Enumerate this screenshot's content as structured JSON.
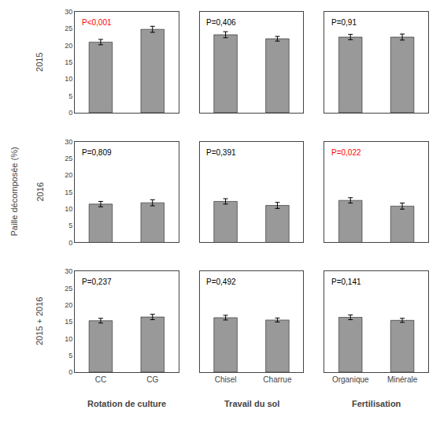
{
  "ylabel": "Paille décomposée (%)",
  "chart_data": [
    {
      "type": "bar",
      "categories": [
        "CC",
        "CG"
      ],
      "values": [
        21.0,
        24.8
      ],
      "errors": [
        0.8,
        0.9
      ],
      "color": "#999999",
      "ylim": [
        0,
        30
      ],
      "yticks": [
        0,
        5,
        10,
        15,
        20,
        25,
        30
      ],
      "grid": false,
      "tick_labels": "y",
      "ylabel": "2015",
      "annotations": [
        {
          "text": "P<0,001",
          "color": "red"
        }
      ]
    },
    {
      "type": "bar",
      "categories": [
        "Chisel",
        "Charrue"
      ],
      "values": [
        23.2,
        22.0
      ],
      "errors": [
        0.9,
        0.7
      ],
      "color": "#999999",
      "ylim": [
        0,
        30
      ],
      "yticks": [
        0,
        5,
        10,
        15,
        20,
        25,
        30
      ],
      "grid": false,
      "tick_labels": false,
      "annotations": [
        {
          "text": "P=0,406",
          "color": "black"
        }
      ]
    },
    {
      "type": "bar",
      "categories": [
        "Organique",
        "Minérale"
      ],
      "values": [
        22.5,
        22.5
      ],
      "errors": [
        0.8,
        0.9
      ],
      "color": "#999999",
      "ylim": [
        0,
        30
      ],
      "yticks": [
        0,
        5,
        10,
        15,
        20,
        25,
        30
      ],
      "grid": false,
      "tick_labels": false,
      "annotations": [
        {
          "text": "P=0,91",
          "color": "black"
        }
      ]
    },
    {
      "type": "bar",
      "categories": [
        "CC",
        "CG"
      ],
      "values": [
        11.4,
        11.8
      ],
      "errors": [
        0.8,
        0.9
      ],
      "color": "#999999",
      "ylim": [
        0,
        30
      ],
      "yticks": [
        0,
        5,
        10,
        15,
        20,
        25,
        30
      ],
      "grid": false,
      "tick_labels": "y",
      "ylabel": "2016",
      "annotations": [
        {
          "text": "P=0,809",
          "color": "black"
        }
      ]
    },
    {
      "type": "bar",
      "categories": [
        "Chisel",
        "Charrue"
      ],
      "values": [
        12.2,
        11.0
      ],
      "errors": [
        0.8,
        0.9
      ],
      "color": "#999999",
      "ylim": [
        0,
        30
      ],
      "yticks": [
        0,
        5,
        10,
        15,
        20,
        25,
        30
      ],
      "grid": false,
      "tick_labels": false,
      "annotations": [
        {
          "text": "P=0,391",
          "color": "black"
        }
      ]
    },
    {
      "type": "bar",
      "categories": [
        "Organique",
        "Minérale"
      ],
      "values": [
        12.5,
        10.8
      ],
      "errors": [
        0.8,
        0.9
      ],
      "color": "#999999",
      "ylim": [
        0,
        30
      ],
      "yticks": [
        0,
        5,
        10,
        15,
        20,
        25,
        30
      ],
      "grid": false,
      "tick_labels": false,
      "annotations": [
        {
          "text": "P=0,022",
          "color": "red"
        }
      ]
    },
    {
      "type": "bar",
      "categories": [
        "CC",
        "CG"
      ],
      "values": [
        15.3,
        16.4
      ],
      "errors": [
        0.7,
        0.8
      ],
      "color": "#999999",
      "ylim": [
        0,
        30
      ],
      "yticks": [
        0,
        5,
        10,
        15,
        20,
        25,
        30
      ],
      "grid": false,
      "ylabel": "2015 + 2016",
      "xlabel": "Rotation de culture",
      "annotations": [
        {
          "text": "P=0,237",
          "color": "black"
        }
      ]
    },
    {
      "type": "bar",
      "categories": [
        "Chisel",
        "Charrue"
      ],
      "values": [
        16.2,
        15.5
      ],
      "errors": [
        0.7,
        0.6
      ],
      "color": "#999999",
      "ylim": [
        0,
        30
      ],
      "yticks": [
        0,
        5,
        10,
        15,
        20,
        25,
        30
      ],
      "grid": false,
      "tick_labels": "x",
      "xlabel": "Travail du sol",
      "annotations": [
        {
          "text": "P=0,492",
          "color": "black"
        }
      ]
    },
    {
      "type": "bar",
      "categories": [
        "Organique",
        "Minérale"
      ],
      "values": [
        16.3,
        15.4
      ],
      "errors": [
        0.7,
        0.6
      ],
      "color": "#999999",
      "ylim": [
        0,
        30
      ],
      "yticks": [
        0,
        5,
        10,
        15,
        20,
        25,
        30
      ],
      "grid": false,
      "tick_labels": "x",
      "xlabel": "Fertilisation",
      "annotations": [
        {
          "text": "P=0,141",
          "color": "black"
        }
      ]
    }
  ]
}
